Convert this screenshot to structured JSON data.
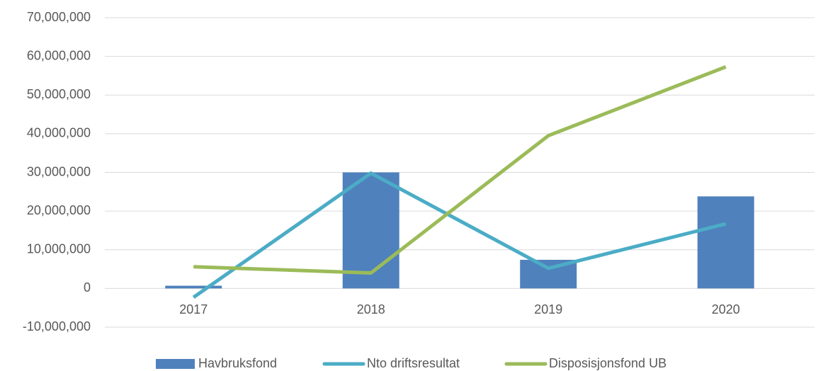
{
  "chart_data": {
    "type": "combo",
    "categories": [
      "2017",
      "2018",
      "2019",
      "2020"
    ],
    "series": [
      {
        "name": "Havbruksfond",
        "type": "bar",
        "color": "#4f81bd",
        "values": [
          700000,
          30000000,
          7400000,
          23800000
        ]
      },
      {
        "name": "Nto driftsresultat",
        "type": "line",
        "color": "#4bacc6",
        "values": [
          -2300000,
          29800000,
          5200000,
          16700000
        ]
      },
      {
        "name": "Disposisjonsfond UB",
        "type": "line",
        "color": "#9bbb59",
        "values": [
          5600000,
          4000000,
          39500000,
          57300000
        ]
      }
    ],
    "ylim": [
      -10000000,
      70000000
    ],
    "yticks": [
      {
        "value": -10000000,
        "label": "-10,000,000"
      },
      0,
      {
        "value": 10000000,
        "label": "10,000,000"
      },
      {
        "value": 20000000,
        "label": "20,000,000"
      },
      {
        "value": 30000000,
        "label": "30,000,000"
      },
      {
        "value": 40000000,
        "label": "40,000,000"
      },
      {
        "value": 50000000,
        "label": "50,000,000"
      },
      {
        "value": 60000000,
        "label": "60,000,000"
      },
      {
        "value": 70000000,
        "label": "70,000,000"
      }
    ],
    "grid": true,
    "legend": "bottom"
  }
}
